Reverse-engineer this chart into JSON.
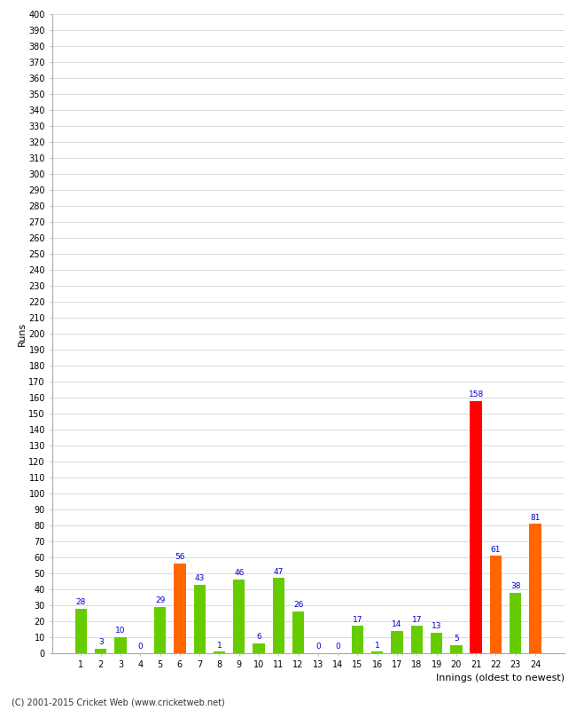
{
  "innings": [
    1,
    2,
    3,
    4,
    5,
    6,
    7,
    8,
    9,
    10,
    11,
    12,
    13,
    14,
    15,
    16,
    17,
    18,
    19,
    20,
    21,
    22,
    23,
    24
  ],
  "values": [
    28,
    3,
    10,
    0,
    29,
    56,
    43,
    1,
    46,
    6,
    47,
    26,
    0,
    0,
    17,
    1,
    14,
    17,
    13,
    5,
    158,
    61,
    38,
    81
  ],
  "colors": [
    "#66cc00",
    "#66cc00",
    "#66cc00",
    "#66cc00",
    "#66cc00",
    "#ff6600",
    "#66cc00",
    "#66cc00",
    "#66cc00",
    "#66cc00",
    "#66cc00",
    "#66cc00",
    "#66cc00",
    "#66cc00",
    "#66cc00",
    "#66cc00",
    "#66cc00",
    "#66cc00",
    "#66cc00",
    "#66cc00",
    "#ff0000",
    "#ff6600",
    "#66cc00",
    "#ff6600"
  ],
  "xlabel": "Innings (oldest to newest)",
  "ylabel": "Runs",
  "ylim": [
    0,
    400
  ],
  "yticks": [
    0,
    10,
    20,
    30,
    40,
    50,
    60,
    70,
    80,
    90,
    100,
    110,
    120,
    130,
    140,
    150,
    160,
    170,
    180,
    190,
    200,
    210,
    220,
    230,
    240,
    250,
    260,
    270,
    280,
    290,
    300,
    310,
    320,
    330,
    340,
    350,
    360,
    370,
    380,
    390,
    400
  ],
  "bg_color": "#ffffff",
  "grid_color": "#cccccc",
  "label_color": "#0000cc",
  "footer": "(C) 2001-2015 Cricket Web (www.cricketweb.net)"
}
